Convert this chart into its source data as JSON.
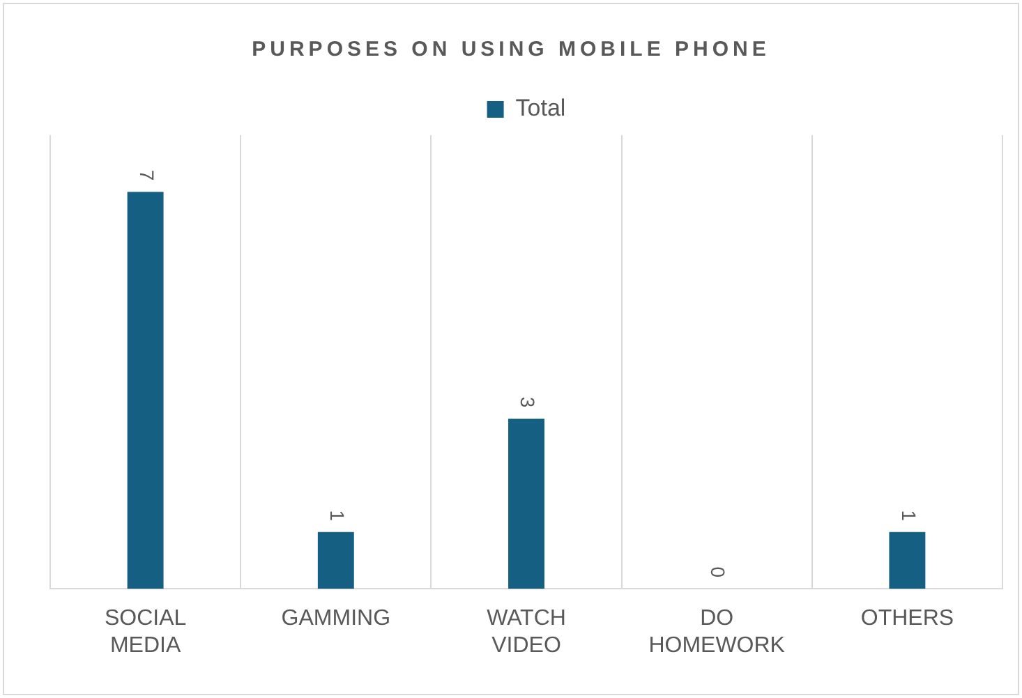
{
  "chart_data": {
    "type": "bar",
    "title": "PURPOSES ON USING MOBILE PHONE",
    "categories": [
      "SOCIAL MEDIA",
      "GAMMING",
      "WATCH VIDEO",
      "DO HOMEWORK",
      "OTHERS"
    ],
    "series": [
      {
        "name": "Total",
        "color": "#156082",
        "values": [
          7,
          1,
          3,
          0,
          1
        ]
      }
    ],
    "data_labels": true,
    "grid": "x",
    "legend": "top",
    "tick_labels": "x"
  }
}
